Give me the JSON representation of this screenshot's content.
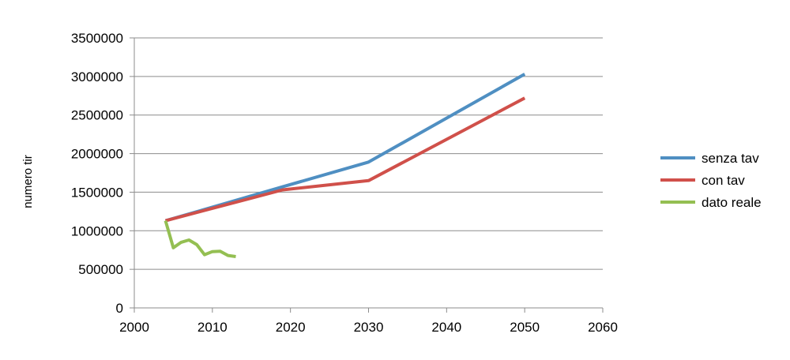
{
  "chart_data": {
    "type": "line",
    "title": "",
    "xlabel": "",
    "ylabel": "numero tir",
    "xlim": [
      2000,
      2060
    ],
    "ylim": [
      0,
      3500000
    ],
    "x_ticks": [
      "2000",
      "2010",
      "2020",
      "2030",
      "2040",
      "2050",
      "2060"
    ],
    "y_ticks": [
      "0",
      "500000",
      "1000000",
      "1500000",
      "2000000",
      "2500000",
      "3000000",
      "3500000"
    ],
    "grid": true,
    "legend_position": "right",
    "series": [
      {
        "name": "senza tav",
        "color": "#4f8fc2",
        "points": [
          [
            2004,
            1130000
          ],
          [
            2019,
            1570000
          ],
          [
            2030,
            1890000
          ],
          [
            2050,
            3030000
          ]
        ]
      },
      {
        "name": "con tav",
        "color": "#d0504a",
        "points": [
          [
            2004,
            1130000
          ],
          [
            2019,
            1530000
          ],
          [
            2030,
            1650000
          ],
          [
            2050,
            2720000
          ]
        ]
      },
      {
        "name": "dato reale",
        "color": "#94bf52",
        "points": [
          [
            2004,
            1130000
          ],
          [
            2005,
            780000
          ],
          [
            2006,
            850000
          ],
          [
            2007,
            880000
          ],
          [
            2008,
            820000
          ],
          [
            2009,
            690000
          ],
          [
            2010,
            730000
          ],
          [
            2011,
            735000
          ],
          [
            2012,
            680000
          ],
          [
            2013,
            665000
          ]
        ]
      }
    ]
  }
}
